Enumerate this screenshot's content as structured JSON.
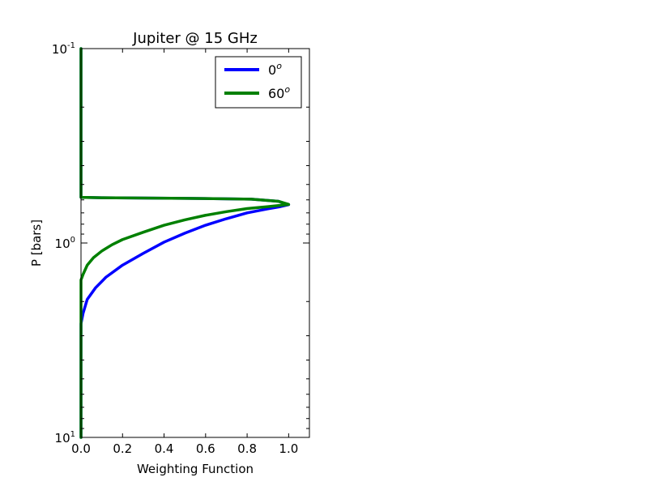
{
  "chart_data": {
    "type": "line",
    "title": "Jupiter @ 15 GHz",
    "xlabel": "Weighting Function",
    "ylabel": "P [bars]",
    "xlim": [
      0.0,
      1.1
    ],
    "ylim": [
      10,
      0.1
    ],
    "y_scale": "log",
    "y_inverted": true,
    "x_ticks": [
      0.0,
      0.2,
      0.4,
      0.6,
      0.8,
      1.0
    ],
    "x_tick_labels": [
      "0.0",
      "0.2",
      "0.4",
      "0.6",
      "0.8",
      "1.0"
    ],
    "y_ticks": [
      {
        "value": 0.1,
        "base": "10",
        "exp": "-1"
      },
      {
        "value": 1,
        "base": "10",
        "exp": "0"
      },
      {
        "value": 10,
        "base": "10",
        "exp": "1"
      }
    ],
    "grid": false,
    "legend_position": "top-right",
    "series": [
      {
        "name": "0",
        "name_sup": "o",
        "color": "#0000ff",
        "points": [
          [
            0.0,
            10
          ],
          [
            0.0,
            3.5
          ],
          [
            0.0,
            2.6
          ],
          [
            0.01,
            2.3
          ],
          [
            0.03,
            1.95
          ],
          [
            0.07,
            1.7
          ],
          [
            0.12,
            1.5
          ],
          [
            0.2,
            1.3
          ],
          [
            0.3,
            1.13
          ],
          [
            0.4,
            0.99
          ],
          [
            0.5,
            0.89
          ],
          [
            0.6,
            0.81
          ],
          [
            0.7,
            0.75
          ],
          [
            0.8,
            0.7
          ],
          [
            0.9,
            0.667
          ],
          [
            0.96,
            0.65
          ],
          [
            1.0,
            0.635
          ],
          [
            0.95,
            0.61
          ],
          [
            0.82,
            0.595
          ],
          [
            0.5,
            0.589
          ],
          [
            0.1,
            0.585
          ],
          [
            0.0,
            0.582
          ],
          [
            0.0,
            0.4
          ],
          [
            0.0,
            0.2
          ],
          [
            0.0,
            0.1
          ]
        ]
      },
      {
        "name": "60",
        "name_sup": "o",
        "color": "#008000",
        "points": [
          [
            0.0,
            10
          ],
          [
            0.0,
            2.0
          ],
          [
            0.0,
            1.55
          ],
          [
            0.01,
            1.45
          ],
          [
            0.03,
            1.3
          ],
          [
            0.06,
            1.19
          ],
          [
            0.1,
            1.1
          ],
          [
            0.15,
            1.02
          ],
          [
            0.2,
            0.96
          ],
          [
            0.3,
            0.88
          ],
          [
            0.4,
            0.81
          ],
          [
            0.5,
            0.76
          ],
          [
            0.6,
            0.72
          ],
          [
            0.7,
            0.69
          ],
          [
            0.8,
            0.665
          ],
          [
            0.9,
            0.65
          ],
          [
            0.96,
            0.64
          ],
          [
            1.0,
            0.633
          ],
          [
            0.95,
            0.61
          ],
          [
            0.82,
            0.595
          ],
          [
            0.5,
            0.589
          ],
          [
            0.1,
            0.585
          ],
          [
            0.0,
            0.582
          ],
          [
            0.0,
            0.4
          ],
          [
            0.0,
            0.2
          ],
          [
            0.0,
            0.1
          ]
        ]
      }
    ]
  }
}
